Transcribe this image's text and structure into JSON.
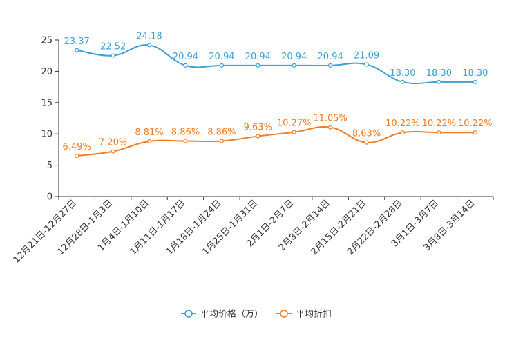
{
  "chart_data": {
    "type": "line",
    "title": "",
    "xlabel": "",
    "ylabel": "",
    "ylim": [
      0,
      25
    ],
    "yticks": [
      0,
      5,
      10,
      15,
      20,
      25
    ],
    "grid": false,
    "legend_position": "bottom-center",
    "categories": [
      "12月21日-12月27日",
      "12月28日-1月3日",
      "1月4日-1月10日",
      "1月11日-1月17日",
      "1月18日-1月24日",
      "1月25日-1月31日",
      "2月1日-2月7日",
      "2月8日-2月14日",
      "2月15日-2月21日",
      "2月22日-2月28日",
      "3月1日-3月7日",
      "3月8日-3月14日"
    ],
    "series": [
      {
        "name": "平均价格（万）",
        "color": "#3aa0d6",
        "values": [
          23.37,
          22.52,
          24.18,
          20.94,
          20.94,
          20.94,
          20.94,
          20.94,
          21.09,
          18.3,
          18.3,
          18.3
        ],
        "labels": [
          "23.37",
          "22.52",
          "24.18",
          "20.94",
          "20.94",
          "20.94",
          "20.94",
          "20.94",
          "21.09",
          "18.30",
          "18.30",
          "18.30"
        ]
      },
      {
        "name": "平均折扣",
        "color": "#f47b1f",
        "values": [
          6.49,
          7.2,
          8.81,
          8.86,
          8.86,
          9.63,
          10.27,
          11.05,
          8.63,
          10.22,
          10.22,
          10.22
        ],
        "labels": [
          "6.49%",
          "7.20%",
          "8.81%",
          "8.86%",
          "8.86%",
          "9.63%",
          "10.27%",
          "11.05%",
          "8.63%",
          "10.22%",
          "10.22%",
          "10.22%"
        ]
      }
    ]
  }
}
